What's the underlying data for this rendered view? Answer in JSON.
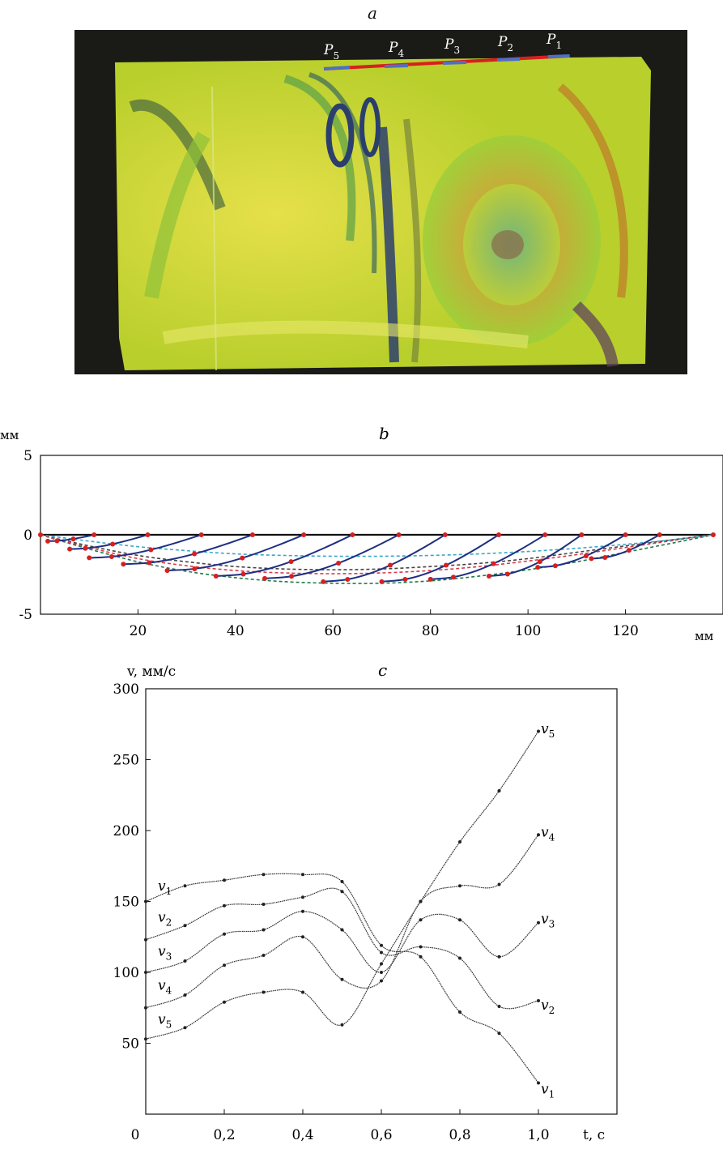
{
  "panel_a": {
    "letter": "a",
    "markers": [
      {
        "id": "5",
        "label": "P",
        "sub": "5"
      },
      {
        "id": "4",
        "label": "P",
        "sub": "4"
      },
      {
        "id": "3",
        "label": "P",
        "sub": "3"
      },
      {
        "id": "2",
        "label": "P",
        "sub": "2"
      },
      {
        "id": "1",
        "label": "P",
        "sub": "1"
      }
    ],
    "colors": {
      "background": "#1a1a17",
      "fringe_yellow": "#d6d82a",
      "fringe_green": "#7fbf3a",
      "fringe_blue": "#2b3f6e",
      "fringe_orange": "#c98a2a",
      "surface_red": "#d62020",
      "surface_blue": "#4f6fc4"
    }
  },
  "chart_data": [
    {
      "type": "line",
      "title": "b",
      "ylabel": "мм",
      "xlabel": "мм",
      "xlim": [
        0,
        140
      ],
      "ylim": [
        -5,
        5
      ],
      "xticks": [
        "20",
        "40",
        "60",
        "80",
        "100",
        "120"
      ],
      "xtick_values": [
        20,
        40,
        60,
        80,
        100,
        120
      ],
      "yticks": [
        "5",
        "0",
        "-5"
      ],
      "ytick_values": [
        5,
        0,
        -5
      ],
      "grid": false,
      "surface_line": {
        "x": [
          0,
          138
        ],
        "y": [
          0,
          0
        ],
        "color": "#111111"
      },
      "boundary_curves": [
        {
          "color": "#1f7a4a",
          "dash": true,
          "x": [
            0,
            10,
            20,
            30,
            40,
            50,
            60,
            70,
            80,
            90,
            100,
            110,
            120,
            130,
            138
          ],
          "y": [
            0,
            -0.9,
            -1.7,
            -2.3,
            -2.7,
            -2.95,
            -3.05,
            -3.05,
            -2.9,
            -2.6,
            -2.2,
            -1.7,
            -1.1,
            -0.5,
            0
          ]
        },
        {
          "color": "#444444",
          "dash": true,
          "x": [
            0,
            10,
            20,
            30,
            40,
            50,
            60,
            70,
            80,
            90,
            100,
            110,
            120,
            130,
            138
          ],
          "y": [
            0,
            -0.7,
            -1.3,
            -1.7,
            -2.0,
            -2.15,
            -2.2,
            -2.15,
            -2.0,
            -1.8,
            -1.5,
            -1.1,
            -0.7,
            -0.3,
            0
          ]
        },
        {
          "color": "#d63a4a",
          "dash": true,
          "x": [
            0,
            10,
            20,
            30,
            40,
            50,
            60,
            70,
            80,
            90,
            100,
            110,
            120,
            130,
            138
          ],
          "y": [
            0,
            -0.8,
            -1.5,
            -1.95,
            -2.25,
            -2.4,
            -2.45,
            -2.4,
            -2.25,
            -2.0,
            -1.65,
            -1.25,
            -0.8,
            -0.35,
            0
          ]
        },
        {
          "color": "#3aa7c9",
          "dash": true,
          "x": [
            0,
            10,
            20,
            30,
            40,
            50,
            60,
            70,
            80,
            90,
            100,
            110,
            120,
            130,
            138
          ],
          "y": [
            0,
            -0.4,
            -0.75,
            -1.0,
            -1.2,
            -1.3,
            -1.35,
            -1.35,
            -1.3,
            -1.2,
            -1.05,
            -0.85,
            -0.6,
            -0.3,
            0
          ]
        }
      ],
      "trajectories": [
        {
          "x0": 11,
          "x1": 1.5,
          "depth": -0.4
        },
        {
          "x0": 22,
          "x1": 6,
          "depth": -0.9
        },
        {
          "x0": 33,
          "x1": 10,
          "depth": -1.45
        },
        {
          "x0": 43.5,
          "x1": 17,
          "depth": -1.85
        },
        {
          "x0": 54,
          "x1": 26,
          "depth": -2.25
        },
        {
          "x0": 64,
          "x1": 36,
          "depth": -2.6
        },
        {
          "x0": 73.5,
          "x1": 46,
          "depth": -2.75
        },
        {
          "x0": 83,
          "x1": 58,
          "depth": -2.95
        },
        {
          "x0": 94,
          "x1": 70,
          "depth": -2.95
        },
        {
          "x0": 103.5,
          "x1": 80,
          "depth": -2.8
        },
        {
          "x0": 111,
          "x1": 92,
          "depth": -2.6
        },
        {
          "x0": 120,
          "x1": 102,
          "depth": -2.05
        },
        {
          "x0": 127,
          "x1": 113,
          "depth": -1.5
        }
      ],
      "trajectory_color": "#1e2f82",
      "point_color": "#d62020"
    },
    {
      "type": "line",
      "title": "c",
      "ylabel": "v, мм/с",
      "xlabel": "t, с",
      "xlim": [
        0,
        1.0
      ],
      "ylim": [
        0,
        300
      ],
      "xticks": [
        "0",
        "0,2",
        "0,4",
        "0,6",
        "0,8",
        "1,0"
      ],
      "xtick_values": [
        0,
        0.2,
        0.4,
        0.6,
        0.8,
        1.0
      ],
      "yticks": [
        "300",
        "250",
        "200",
        "150",
        "100",
        "50"
      ],
      "ytick_values": [
        300,
        250,
        200,
        150,
        100,
        50
      ],
      "grid": false,
      "x": [
        0,
        0.1,
        0.2,
        0.3,
        0.4,
        0.5,
        0.6,
        0.7,
        0.8,
        0.9,
        1.0
      ],
      "series": [
        {
          "name": "v",
          "sub": "1",
          "values": [
            150,
            161,
            165,
            169,
            169,
            164,
            119,
            111,
            72,
            57,
            22
          ],
          "left_label_y": 160,
          "right_label_y": 17
        },
        {
          "name": "v",
          "sub": "2",
          "values": [
            123,
            133,
            147,
            148,
            153,
            157,
            114,
            118,
            110,
            76,
            80
          ],
          "left_label_y": 138,
          "right_label_y": 76
        },
        {
          "name": "v",
          "sub": "3",
          "values": [
            100,
            108,
            127,
            130,
            143,
            130,
            100,
            137,
            137,
            111,
            135
          ],
          "left_label_y": 114,
          "right_label_y": 137
        },
        {
          "name": "v",
          "sub": "4",
          "values": [
            75,
            84,
            105,
            112,
            125,
            95,
            94,
            150,
            161,
            162,
            197
          ],
          "left_label_y": 90,
          "right_label_y": 198
        },
        {
          "name": "v",
          "sub": "5",
          "values": [
            53,
            61,
            79,
            86,
            86,
            63,
            106,
            150,
            192,
            228,
            270
          ],
          "left_label_y": 66,
          "right_label_y": 271
        }
      ],
      "line_color": "#333333"
    }
  ]
}
